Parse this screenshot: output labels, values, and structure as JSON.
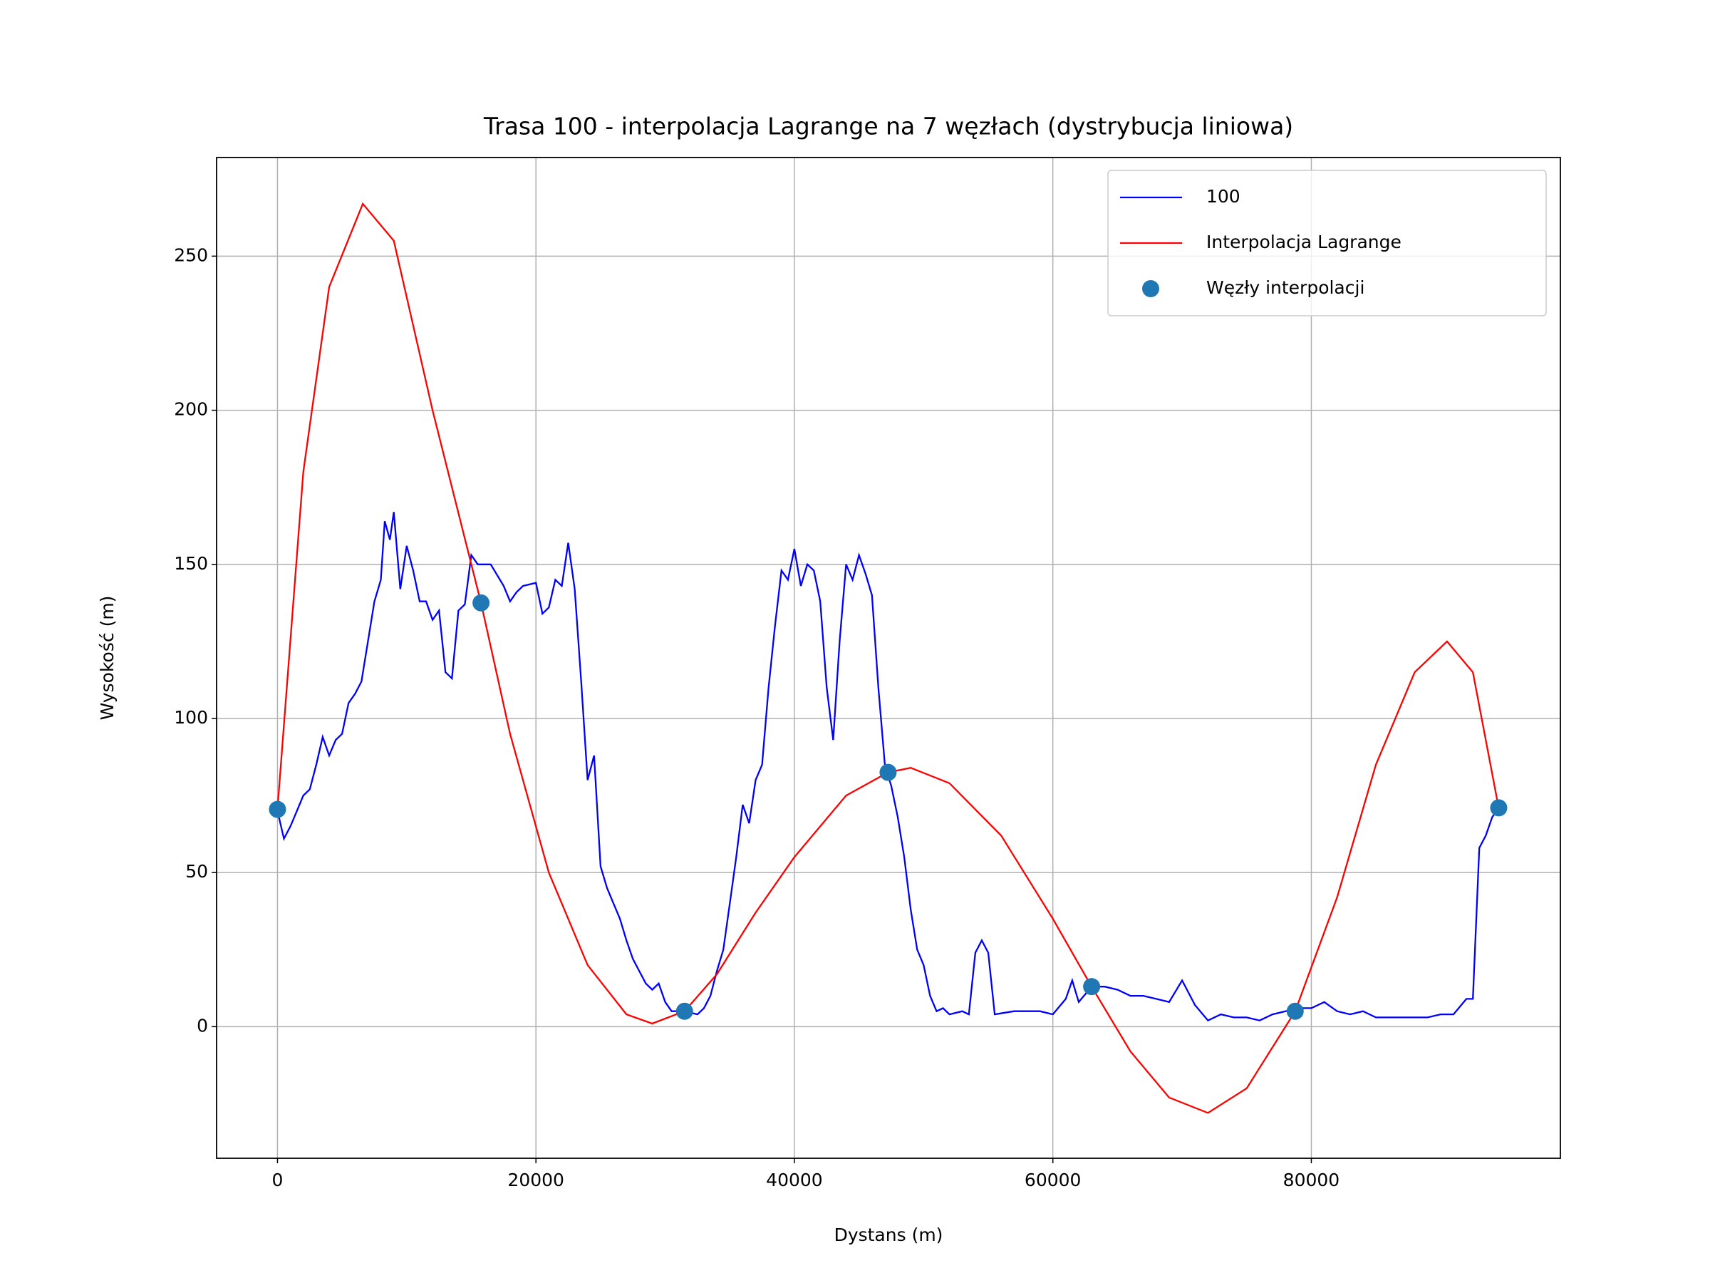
{
  "chart_data": {
    "type": "line",
    "title": "Trasa 100 - interpolacja Lagrange na 7 węzłach (dystrybucja liniowa)",
    "x_label": "Dystans (m)",
    "y_label": "Wysokość (m)",
    "xlim": [
      -4711,
      99272
    ],
    "ylim": [
      -42.7,
      282
    ],
    "xticks": [
      0,
      20000,
      40000,
      60000,
      80000
    ],
    "yticks": [
      0,
      50,
      100,
      150,
      200,
      250
    ],
    "grid": true,
    "legend": "upper right",
    "series": [
      {
        "name": "100",
        "type": "line",
        "color": "#0000ff",
        "x": [
          0,
          500,
          1000,
          1500,
          2000,
          2500,
          3000,
          3500,
          4000,
          4500,
          5000,
          5500,
          6000,
          6500,
          7000,
          7500,
          8000,
          8300,
          8700,
          9000,
          9500,
          10000,
          10500,
          11000,
          11500,
          12000,
          12500,
          13000,
          13500,
          14000,
          14500,
          15000,
          15500,
          16500,
          17500,
          18000,
          18500,
          19000,
          20000,
          20500,
          21000,
          21500,
          22000,
          22500,
          23000,
          23500,
          24000,
          24500,
          25000,
          25500,
          26000,
          26500,
          27000,
          27500,
          28000,
          28500,
          29000,
          29500,
          30000,
          30500,
          31500,
          32500,
          33000,
          33500,
          34000,
          34500,
          35000,
          35500,
          36000,
          36500,
          37000,
          37500,
          38000,
          38500,
          39000,
          39500,
          40000,
          40500,
          41000,
          41500,
          42000,
          42500,
          43000,
          43500,
          44000,
          44500,
          45000,
          45500,
          46000,
          46500,
          47000,
          47500,
          48000,
          48500,
          49000,
          49500,
          50000,
          50500,
          51000,
          51500,
          52000,
          53000,
          53500,
          54000,
          54500,
          55000,
          55500,
          57000,
          58000,
          59000,
          60000,
          61000,
          61500,
          62000,
          63000,
          64000,
          65000,
          66000,
          67000,
          68000,
          69000,
          70000,
          71000,
          72000,
          73000,
          74000,
          75000,
          76000,
          77000,
          78000,
          79000,
          80000,
          81000,
          82000,
          83000,
          84000,
          85000,
          86000,
          87000,
          88000,
          89000,
          90000,
          91000,
          92000,
          92500,
          93000,
          93500,
          94000,
          94500
        ],
        "values": [
          70,
          61,
          65,
          70,
          75,
          77,
          85,
          94,
          88,
          93,
          95,
          105,
          108,
          112,
          125,
          138,
          145,
          164,
          158,
          167,
          142,
          156,
          148,
          138,
          138,
          132,
          135,
          115,
          113,
          135,
          137,
          153,
          150,
          150,
          143,
          138,
          141,
          143,
          144,
          134,
          136,
          145,
          143,
          157,
          142,
          112,
          80,
          88,
          52,
          45,
          40,
          35,
          28,
          22,
          18,
          14,
          12,
          14,
          8,
          5,
          5,
          4,
          6,
          10,
          18,
          25,
          40,
          55,
          72,
          66,
          80,
          85,
          110,
          130,
          148,
          145,
          155,
          143,
          150,
          148,
          138,
          110,
          93,
          125,
          150,
          145,
          153,
          147,
          140,
          110,
          85,
          78,
          68,
          55,
          38,
          25,
          20,
          10,
          5,
          6,
          4,
          5,
          4,
          24,
          28,
          24,
          4,
          5,
          5,
          5,
          4,
          9,
          15,
          8,
          13,
          13,
          12,
          10,
          10,
          9,
          8,
          15,
          7,
          2,
          4,
          3,
          3,
          2,
          4,
          5,
          6,
          6,
          8,
          5,
          4,
          5,
          3,
          3,
          3,
          3,
          3,
          4,
          4,
          9,
          9,
          58,
          62,
          68,
          71
        ]
      },
      {
        "name": "Interpolacja Lagrange",
        "type": "line",
        "color": "#ff0000",
        "x": [
          0,
          2000,
          4000,
          6600,
          9000,
          12000,
          15750,
          18000,
          21000,
          24000,
          27000,
          29000,
          31500,
          34000,
          37000,
          40000,
          44000,
          47250,
          49000,
          52000,
          56000,
          60000,
          63000,
          66000,
          69000,
          72000,
          75000,
          78750,
          82000,
          85000,
          88000,
          90500,
          92500,
          94500
        ],
        "values": [
          70.5,
          180,
          240,
          267,
          255,
          200,
          137.5,
          95,
          50,
          20,
          4,
          1,
          5,
          17,
          37,
          55,
          75,
          82.5,
          84,
          79,
          62,
          35,
          13,
          -8,
          -23,
          -28,
          -20,
          5,
          42,
          85,
          115,
          125,
          115,
          71
        ]
      },
      {
        "name": "Węzły interpolacji",
        "type": "scatter",
        "color": "#1f77b4",
        "x": [
          0,
          15750,
          31500,
          47250,
          63000,
          78750,
          94500
        ],
        "values": [
          70.5,
          137.5,
          5,
          82.5,
          13,
          5,
          71
        ]
      }
    ]
  }
}
